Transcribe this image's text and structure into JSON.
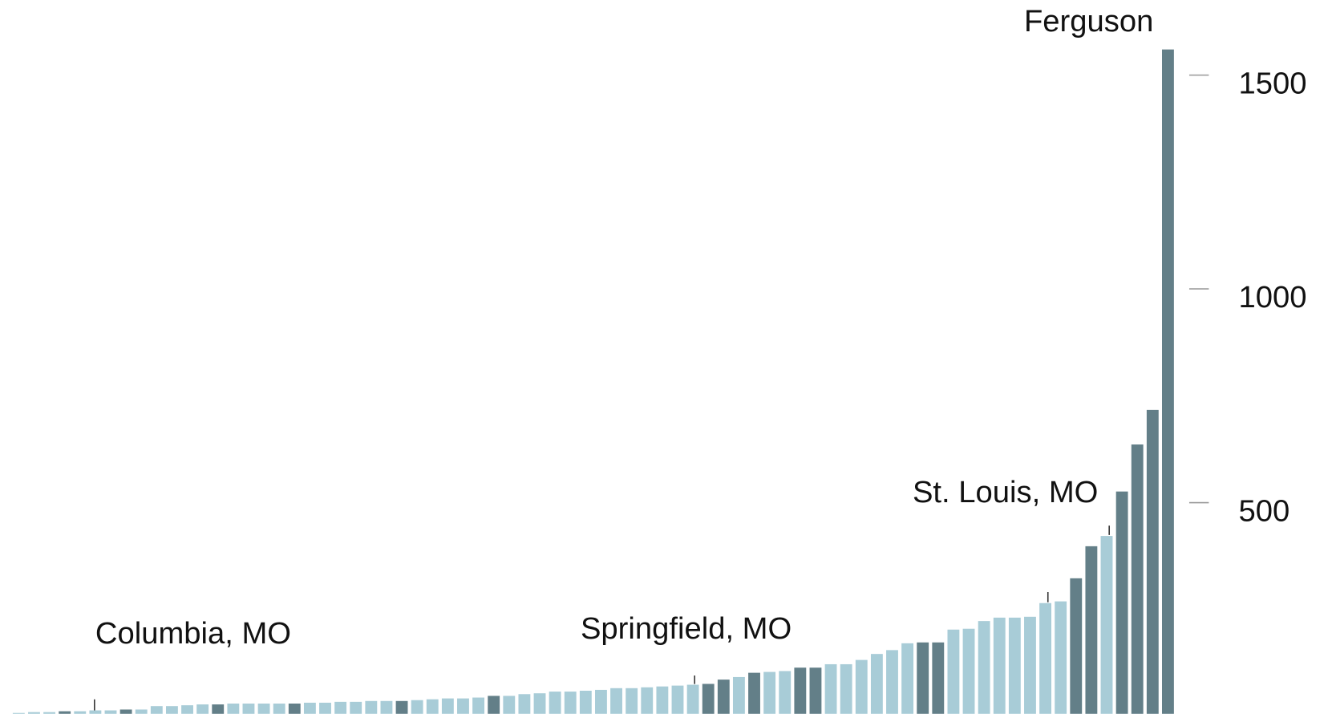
{
  "chart_data": {
    "type": "bar",
    "series": [
      {
        "values": [
          8,
          10,
          10,
          12,
          12,
          14,
          14,
          16,
          16,
          24,
          24,
          26,
          28,
          28,
          30,
          30,
          30,
          30,
          30,
          32,
          32,
          34,
          34,
          36,
          36,
          36,
          38,
          40,
          42,
          42,
          44,
          48,
          48,
          52,
          54,
          58,
          58,
          60,
          62,
          66,
          66,
          68,
          70,
          72,
          74,
          76,
          86,
          92,
          102,
          104,
          106,
          114,
          114,
          122,
          122,
          132,
          146,
          155,
          171,
          173,
          173,
          203,
          205,
          223,
          231,
          231,
          233,
          265,
          269,
          323,
          398,
          422,
          526,
          636,
          717,
          1560
        ],
        "colors": [
          "#a8ccd7",
          "#a8ccd7",
          "#a8ccd7",
          "#637f88",
          "#a8ccd7",
          "#a8ccd7",
          "#a8ccd7",
          "#637f88",
          "#a8ccd7",
          "#a8ccd7",
          "#a8ccd7",
          "#a8ccd7",
          "#a8ccd7",
          "#637f88",
          "#a8ccd7",
          "#a8ccd7",
          "#a8ccd7",
          "#a8ccd7",
          "#637f88",
          "#a8ccd7",
          "#a8ccd7",
          "#a8ccd7",
          "#a8ccd7",
          "#a8ccd7",
          "#a8ccd7",
          "#637f88",
          "#a8ccd7",
          "#a8ccd7",
          "#a8ccd7",
          "#a8ccd7",
          "#a8ccd7",
          "#637f88",
          "#a8ccd7",
          "#a8ccd7",
          "#a8ccd7",
          "#a8ccd7",
          "#a8ccd7",
          "#a8ccd7",
          "#a8ccd7",
          "#a8ccd7",
          "#a8ccd7",
          "#a8ccd7",
          "#a8ccd7",
          "#a8ccd7",
          "#a8ccd7",
          "#637f88",
          "#637f88",
          "#a8ccd7",
          "#637f88",
          "#a8ccd7",
          "#a8ccd7",
          "#637f88",
          "#637f88",
          "#a8ccd7",
          "#a8ccd7",
          "#a8ccd7",
          "#a8ccd7",
          "#a8ccd7",
          "#a8ccd7",
          "#637f88",
          "#637f88",
          "#a8ccd7",
          "#a8ccd7",
          "#a8ccd7",
          "#a8ccd7",
          "#a8ccd7",
          "#a8ccd7",
          "#a8ccd7",
          "#a8ccd7",
          "#637f88",
          "#637f88",
          "#a8ccd7",
          "#637f88",
          "#637f88",
          "#637f88",
          "#637f88"
        ]
      }
    ],
    "annotations": [
      "Ferguson",
      "St. Louis, MO",
      "Springfield, MO",
      "Columbia, MO"
    ],
    "ylim": [
      0,
      1600
    ],
    "yticks": [
      500,
      1000,
      1500
    ],
    "tick_color": "#999999"
  }
}
